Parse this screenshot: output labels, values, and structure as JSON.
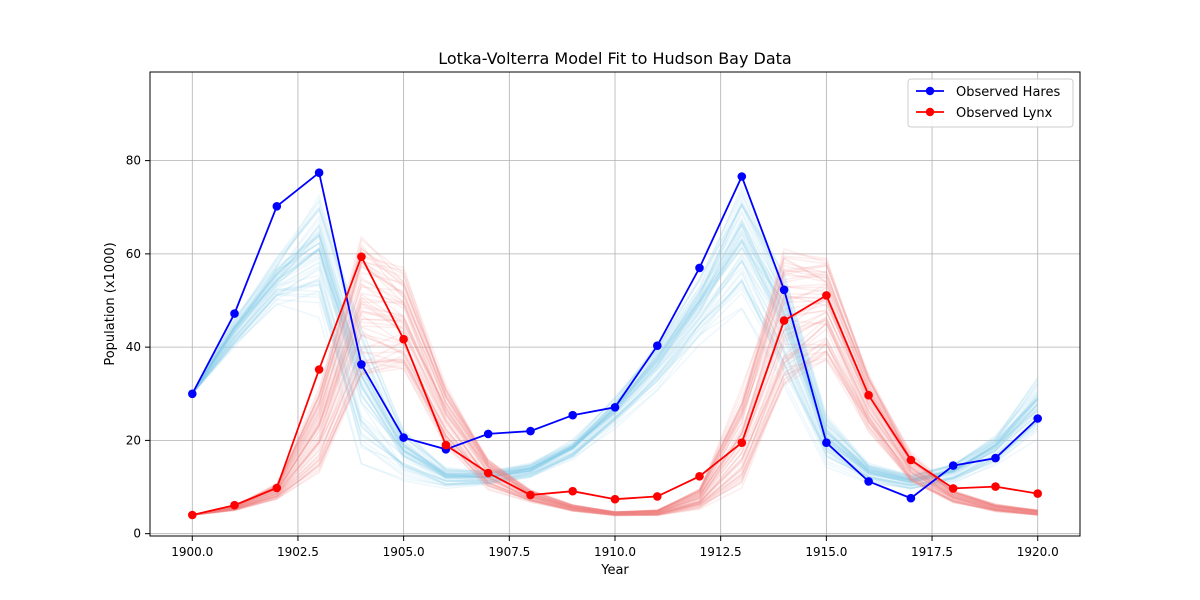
{
  "chart_data": {
    "type": "line",
    "title": "Lotka-Volterra Model Fit to Hudson Bay Data",
    "xlabel": "Year",
    "ylabel": "Population (x1000)",
    "xlim": [
      1899.0,
      1921.0
    ],
    "ylim": [
      -0.5,
      99
    ],
    "x_ticks": [
      1900.0,
      1902.5,
      1905.0,
      1907.5,
      1910.0,
      1912.5,
      1915.0,
      1917.5,
      1920.0
    ],
    "x_tick_labels": [
      "1900.0",
      "1902.5",
      "1905.0",
      "1907.5",
      "1910.0",
      "1912.5",
      "1915.0",
      "1917.5",
      "1920.0"
    ],
    "y_ticks": [
      0,
      20,
      40,
      60,
      80
    ],
    "y_tick_labels": [
      "0",
      "20",
      "40",
      "60",
      "80"
    ],
    "grid": true,
    "legend_position": "top-right",
    "x": [
      1900,
      1901,
      1902,
      1903,
      1904,
      1905,
      1906,
      1907,
      1908,
      1909,
      1910,
      1911,
      1912,
      1913,
      1914,
      1915,
      1916,
      1917,
      1918,
      1919,
      1920
    ],
    "series": [
      {
        "name": "Observed Hares",
        "color": "#0000ff",
        "marker": "circle",
        "values": [
          30,
          47.2,
          70.2,
          77.4,
          36.3,
          20.6,
          18.1,
          21.4,
          22,
          25.4,
          27.1,
          40.3,
          57,
          76.6,
          52.3,
          19.5,
          11.2,
          7.6,
          14.6,
          16.2,
          24.7
        ]
      },
      {
        "name": "Observed Lynx",
        "color": "#ff0000",
        "marker": "circle",
        "values": [
          4,
          6.1,
          9.8,
          35.2,
          59.4,
          41.7,
          19,
          13,
          8.3,
          9.1,
          7.4,
          8,
          12.3,
          19.5,
          45.7,
          51.1,
          29.7,
          15.8,
          9.7,
          10.1,
          8.6
        ]
      }
    ],
    "posterior_samples": {
      "hares_color": "#87ceeb",
      "lynx_color": "#f08080",
      "hares_mean": [
        30,
        43,
        54,
        60,
        30,
        17,
        12,
        12,
        13.5,
        18,
        26,
        36,
        48,
        62,
        45,
        20,
        13,
        11,
        13,
        18,
        27
      ],
      "hares_spread": [
        0,
        3,
        5,
        12,
        14,
        5,
        2,
        1.5,
        1.5,
        2,
        3,
        5,
        7,
        12,
        12,
        5,
        2,
        1.5,
        2,
        3,
        6
      ],
      "lynx_mean": [
        4,
        5.5,
        9,
        22,
        48,
        45,
        25,
        13,
        8,
        5.5,
        4.3,
        4.5,
        7.5,
        20,
        45,
        48,
        28,
        14,
        8,
        5.5,
        4.5
      ],
      "lynx_spread": [
        0,
        0.5,
        1.5,
        8,
        14,
        10,
        6,
        3,
        1.2,
        0.6,
        0.4,
        0.5,
        2,
        10,
        14,
        10,
        6,
        3,
        1.2,
        0.7,
        0.5
      ],
      "count": 60
    }
  }
}
